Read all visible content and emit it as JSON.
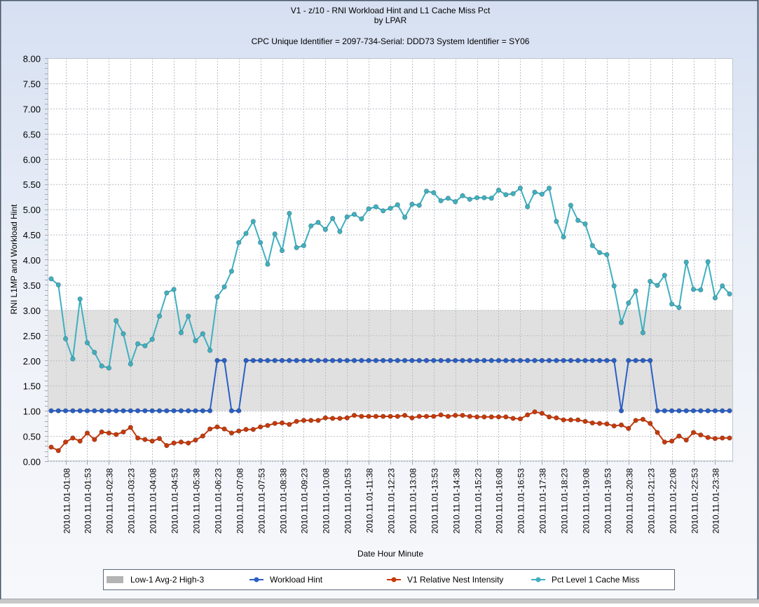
{
  "chart_data": {
    "type": "line",
    "title": "V1 - z/10 - RNI Workload Hint and L1 Cache Miss Pct",
    "title_line2": "by LPAR",
    "subtitle": "CPC Unique Identifier = 2097-734-Serial: DDD73  System Identifier = SY06",
    "xlabel": "Date Hour Minute",
    "ylabel": "RNI L1MP and Workload Hint",
    "ylim": [
      0,
      8
    ],
    "y_ticks": [
      "0.00",
      "0.50",
      "1.00",
      "1.50",
      "2.00",
      "2.50",
      "3.00",
      "3.50",
      "4.00",
      "4.50",
      "5.00",
      "5.50",
      "6.00",
      "6.50",
      "7.00",
      "7.50",
      "8.00"
    ],
    "x_tick_labels": [
      "2010.11.01-01:08",
      "2010.11.01-01:53",
      "2010.11.01-02:38",
      "2010.11.01-03:23",
      "2010.11.01-04:08",
      "2010.11.01-04:53",
      "2010.11.01-05:38",
      "2010.11.01-06:23",
      "2010.11.01-07:08",
      "2010.11.01-07:53",
      "2010.11.01-08:38",
      "2010.11.01-09:23",
      "2010.11.01-10:08",
      "2010.11.01-10:53",
      "2010.11.01-11:38",
      "2010.11.01-12:23",
      "2010.11.01-13:08",
      "2010.11.01-13:53",
      "2010.11.01-14:38",
      "2010.11.01-15:23",
      "2010.11.01-16:08",
      "2010.11.01-16:53",
      "2010.11.01-17:38",
      "2010.11.01-18:23",
      "2010.11.01-19:08",
      "2010.11.01-19:53",
      "2010.11.01-20:38",
      "2010.11.01-21:23",
      "2010.11.01-22:08",
      "2010.11.01-22:53",
      "2010.11.01-23:38"
    ],
    "grid": true,
    "legend_position": "bottom",
    "band": {
      "name": "Low-1 Avg-2 High-3",
      "from": 1,
      "to": 3,
      "color": "#e0e0e0"
    },
    "series": [
      {
        "name": "Workload Hint",
        "color": "#2a5fc4",
        "values": [
          1,
          1,
          1,
          1,
          1,
          1,
          1,
          1,
          1,
          1,
          1,
          1,
          1,
          1,
          1,
          1,
          1,
          1,
          1,
          1,
          1,
          1,
          1,
          2,
          2,
          1,
          1,
          2,
          2,
          2,
          2,
          2,
          2,
          2,
          2,
          2,
          2,
          2,
          2,
          2,
          2,
          2,
          2,
          2,
          2,
          2,
          2,
          2,
          2,
          2,
          2,
          2,
          2,
          2,
          2,
          2,
          2,
          2,
          2,
          2,
          2,
          2,
          2,
          2,
          2,
          2,
          2,
          2,
          2,
          2,
          2,
          2,
          2,
          2,
          2,
          2,
          2,
          2,
          2,
          1,
          2,
          2,
          2,
          2,
          1,
          1,
          1,
          1,
          1,
          1,
          1,
          1,
          1,
          1,
          1
        ]
      },
      {
        "name": "V1 Relative Nest Intensity",
        "color": "#c63a0c",
        "values": [
          0.28,
          0.21,
          0.38,
          0.46,
          0.4,
          0.56,
          0.43,
          0.58,
          0.56,
          0.53,
          0.58,
          0.67,
          0.46,
          0.43,
          0.4,
          0.45,
          0.31,
          0.36,
          0.38,
          0.36,
          0.42,
          0.5,
          0.64,
          0.68,
          0.64,
          0.56,
          0.6,
          0.63,
          0.63,
          0.68,
          0.71,
          0.75,
          0.76,
          0.73,
          0.79,
          0.81,
          0.81,
          0.81,
          0.86,
          0.85,
          0.85,
          0.86,
          0.91,
          0.89,
          0.89,
          0.89,
          0.89,
          0.89,
          0.89,
          0.91,
          0.86,
          0.89,
          0.89,
          0.89,
          0.92,
          0.89,
          0.91,
          0.91,
          0.89,
          0.88,
          0.88,
          0.88,
          0.88,
          0.88,
          0.85,
          0.84,
          0.92,
          0.98,
          0.95,
          0.88,
          0.86,
          0.82,
          0.82,
          0.82,
          0.79,
          0.76,
          0.75,
          0.74,
          0.7,
          0.72,
          0.65,
          0.81,
          0.83,
          0.75,
          0.57,
          0.38,
          0.4,
          0.5,
          0.42,
          0.57,
          0.52,
          0.47,
          0.45,
          0.46,
          0.46
        ]
      },
      {
        "name": "Pct Level 1 Cache Miss",
        "color": "#3fb0c0",
        "values": [
          3.62,
          3.5,
          2.43,
          2.03,
          3.22,
          2.35,
          2.16,
          1.89,
          1.85,
          2.79,
          2.53,
          1.93,
          2.33,
          2.29,
          2.42,
          2.88,
          3.34,
          3.41,
          2.55,
          2.88,
          2.39,
          2.53,
          2.2,
          3.26,
          3.46,
          3.77,
          4.34,
          4.52,
          4.76,
          4.34,
          3.91,
          4.51,
          4.18,
          4.92,
          4.24,
          4.28,
          4.67,
          4.74,
          4.6,
          4.82,
          4.56,
          4.85,
          4.9,
          4.81,
          5.01,
          5.05,
          4.97,
          5.02,
          5.09,
          4.84,
          5.1,
          5.08,
          5.36,
          5.33,
          5.17,
          5.22,
          5.15,
          5.27,
          5.2,
          5.23,
          5.23,
          5.22,
          5.38,
          5.29,
          5.31,
          5.42,
          5.05,
          5.34,
          5.3,
          5.42,
          4.76,
          4.45,
          5.08,
          4.78,
          4.71,
          4.28,
          4.14,
          4.1,
          3.48,
          2.75,
          3.14,
          3.38,
          2.55,
          3.57,
          3.49,
          3.69,
          3.12,
          3.05,
          3.95,
          3.41,
          3.4,
          3.96,
          3.24,
          3.48,
          3.32
        ]
      }
    ]
  }
}
